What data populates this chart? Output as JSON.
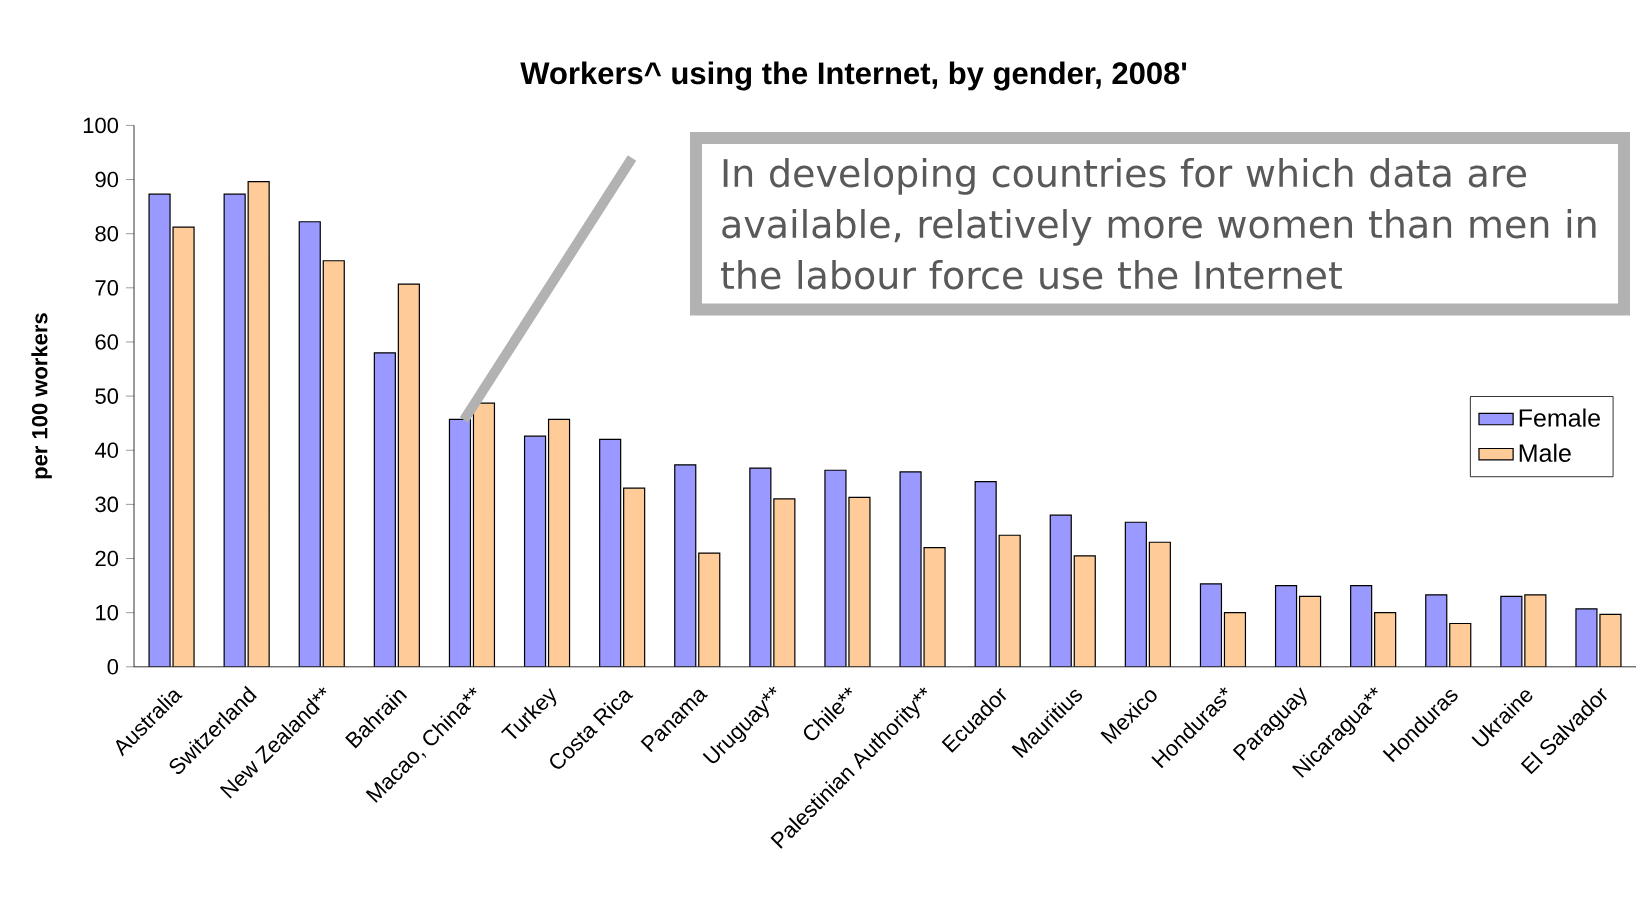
{
  "chart_data": {
    "type": "bar",
    "title": "Workers^ using the Internet, by gender, 2008'",
    "ylabel": "per 100 workers",
    "categories": [
      "Australia",
      "Switzerland",
      "New Zealand**",
      "Bahrain",
      "Macao, China**",
      "Turkey",
      "Costa Rica",
      "Panama",
      "Uruguay**",
      "Chile**",
      "Palestinian Authority**",
      "Ecuador",
      "Mauritius",
      "Mexico",
      "Honduras*",
      "Paraguay",
      "Nicaragua**",
      "Honduras",
      "Ukraine",
      "El Salvador"
    ],
    "series": [
      {
        "name": "Female",
        "color": "#9999ff",
        "values": [
          87.3,
          87.3,
          82.2,
          58,
          45.7,
          42.6,
          42,
          37.3,
          36.7,
          36.3,
          36,
          34.2,
          28,
          26.7,
          15.3,
          15,
          15,
          13.3,
          13,
          10.7
        ]
      },
      {
        "name": "Male",
        "color": "#ffcc99",
        "values": [
          81.2,
          89.6,
          75,
          70.7,
          48.7,
          45.7,
          33,
          21,
          31,
          31.3,
          22,
          24.3,
          20.5,
          23,
          10,
          13,
          10,
          8,
          13.3,
          9.7
        ]
      }
    ],
    "ylim": [
      0,
      100
    ],
    "yticks": [
      0,
      10,
      20,
      30,
      40,
      50,
      60,
      70,
      80,
      90,
      100
    ],
    "grid": false,
    "legend": "right",
    "annotations": [
      "In developing countries for which data are available, relatively more women than men in the labour force use the Internet"
    ]
  }
}
